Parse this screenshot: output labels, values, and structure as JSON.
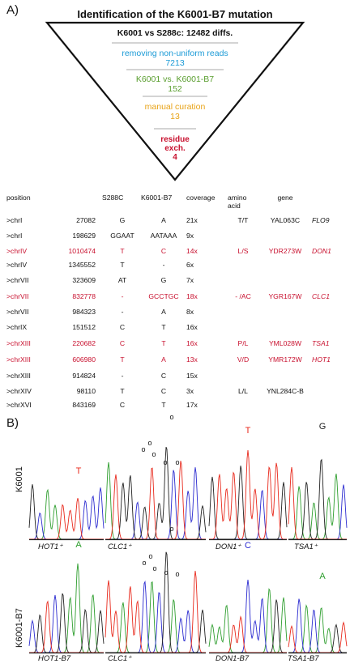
{
  "panel_a_label": "A)",
  "panel_b_label": "B)",
  "funnel": {
    "title": "Identification of the K6001-B7 mutation",
    "steps": [
      {
        "text": "K6001 vs S288c: 12482 diffs.",
        "color": "#111111"
      },
      {
        "text": "removing non-uniform reads",
        "value": "7213",
        "color": "#1a9ad6"
      },
      {
        "text": "K6001 vs. K6001-B7",
        "value": "152",
        "color": "#5a9e2f"
      },
      {
        "text": "manual curation",
        "value": "13",
        "color": "#e8a317"
      },
      {
        "text": "residue exch.",
        "value": "4",
        "color": "#c8102e"
      }
    ]
  },
  "table": {
    "headers": [
      "position",
      "",
      "S288C",
      "K6001-B7",
      "coverage",
      "amino acid",
      "gene",
      ""
    ],
    "rows": [
      {
        "chr": ">chrI",
        "pos": "27082",
        "s288c": "G",
        "b7": "A",
        "cov": "21x",
        "aa": "T/T",
        "gene": "YAL063C",
        "name": "FLO9",
        "red": false
      },
      {
        "chr": ">chrI",
        "pos": "198629",
        "s288c": "GGAAT",
        "b7": "AATAAA",
        "cov": "9x",
        "aa": "",
        "gene": "",
        "name": "",
        "red": false
      },
      {
        "chr": ">chrIV",
        "pos": "1010474",
        "s288c": "T",
        "b7": "C",
        "cov": "14x",
        "aa": "L/S",
        "gene": "YDR273W",
        "name": "DON1",
        "red": true
      },
      {
        "chr": ">chrIV",
        "pos": "1345552",
        "s288c": "T",
        "b7": "-",
        "cov": "6x",
        "aa": "",
        "gene": "",
        "name": "",
        "red": false
      },
      {
        "chr": ">chrVII",
        "pos": "323609",
        "s288c": "AT",
        "b7": "G",
        "cov": "7x",
        "aa": "",
        "gene": "",
        "name": "",
        "red": false
      },
      {
        "chr": ">chrVII",
        "pos": "832778",
        "s288c": "-",
        "b7": "GCCTGC",
        "cov": "18x",
        "aa": "- /AC",
        "gene": "YGR167W",
        "name": "CLC1",
        "red": true
      },
      {
        "chr": ">chrVII",
        "pos": "984323",
        "s288c": "-",
        "b7": "A",
        "cov": "8x",
        "aa": "",
        "gene": "",
        "name": "",
        "red": false
      },
      {
        "chr": ">chrIX",
        "pos": "151512",
        "s288c": "C",
        "b7": "T",
        "cov": "16x",
        "aa": "",
        "gene": "",
        "name": "",
        "red": false
      },
      {
        "chr": ">chrXIII",
        "pos": "220682",
        "s288c": "C",
        "b7": "T",
        "cov": "16x",
        "aa": "P/L",
        "gene": "YML028W",
        "name": "TSA1",
        "red": true
      },
      {
        "chr": ">chrXIII",
        "pos": "606980",
        "s288c": "T",
        "b7": "A",
        "cov": "13x",
        "aa": "V/D",
        "gene": "YMR172W",
        "name": "HOT1",
        "red": true
      },
      {
        "chr": ">chrXIII",
        "pos": "914824",
        "s288c": "-",
        "b7": "C",
        "cov": "15x",
        "aa": "",
        "gene": "",
        "name": "",
        "red": false
      },
      {
        "chr": ">chrXIV",
        "pos": "98110",
        "s288c": "T",
        "b7": "C",
        "cov": "3x",
        "aa": "L/L",
        "gene": "YNL284C-B",
        "name": "",
        "red": false
      },
      {
        "chr": ">chrXVI",
        "pos": "843169",
        "s288c": "C",
        "b7": "T",
        "cov": "17x",
        "aa": "",
        "gene": "",
        "name": "",
        "red": false
      }
    ]
  },
  "traces": {
    "row_labels": [
      "K6001",
      "K6001-B7"
    ],
    "top_labels": [
      "HOT1⁺",
      "CLC1⁺",
      "DON1⁺",
      "TSA1⁺"
    ],
    "bottom_labels": [
      "HOT1-B7",
      "CLC1⁺",
      "DON1-B7",
      "TSA1-B7"
    ],
    "top_bases": [
      {
        "letter": "T",
        "color": "#e8291c"
      },
      {
        "letter": "T",
        "color": "#e8291c"
      },
      {
        "letter": "G",
        "color": "#222222"
      }
    ],
    "bottom_bases": [
      {
        "letter": "A",
        "color": "#2e9e2e"
      },
      {
        "letter": "C",
        "color": "#2b2bd0"
      },
      {
        "letter": "A",
        "color": "#2e9e2e"
      }
    ],
    "marker_symbol": "o",
    "colors": {
      "A": "#2e9e2e",
      "C": "#2b2bd0",
      "G": "#222222",
      "T": "#e8291c"
    }
  }
}
